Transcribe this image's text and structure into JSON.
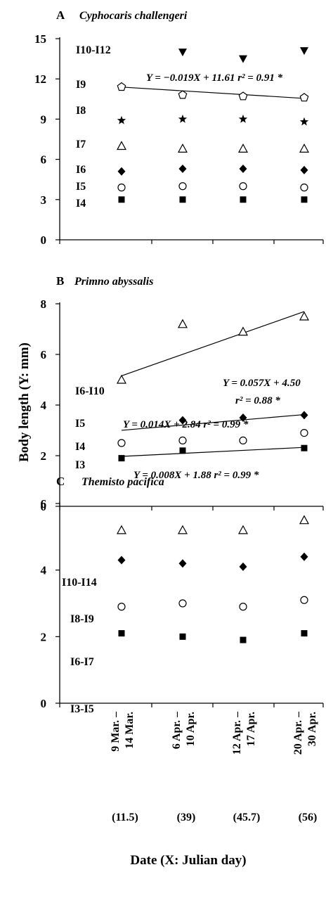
{
  "figure": {
    "ylabel": "Body length (Y: mm)",
    "xlabel": "Date  (X: Julian day)",
    "x_categories": [
      {
        "date": "9 Mar. – 14 Mar.",
        "julian": "(11.5)"
      },
      {
        "date": "6 Apr. – 10 Apr.",
        "julian": "(39)"
      },
      {
        "date": "12 Apr. – 17 Apr.",
        "julian": "(45.7)"
      },
      {
        "date": "20 Apr. – 30 Apr.",
        "julian": "(56)"
      }
    ]
  },
  "chart_data": [
    {
      "type": "scatter",
      "panel": "A",
      "title": "Cyphocaris challengeri",
      "x": [
        11.5,
        39,
        45.7,
        56
      ],
      "ylim": [
        0,
        15
      ],
      "yticks": [
        0,
        3,
        6,
        9,
        12,
        15
      ],
      "series": [
        {
          "name": "I10-I12",
          "marker": "triangle-down-filled",
          "values": [
            null,
            14.0,
            13.5,
            14.1
          ]
        },
        {
          "name": "I9",
          "marker": "pentagon-open",
          "values": [
            11.4,
            10.8,
            10.7,
            10.6
          ]
        },
        {
          "name": "I8",
          "marker": "star-filled",
          "values": [
            8.9,
            9.0,
            9.0,
            8.8
          ]
        },
        {
          "name": "I7",
          "marker": "triangle-up-open",
          "values": [
            7.0,
            6.8,
            6.8,
            6.8
          ]
        },
        {
          "name": "I6",
          "marker": "diamond-filled",
          "values": [
            5.1,
            5.3,
            5.3,
            5.2
          ]
        },
        {
          "name": "I5",
          "marker": "circle-open",
          "values": [
            3.9,
            4.0,
            4.0,
            3.9
          ]
        },
        {
          "name": "I4",
          "marker": "square-filled",
          "values": [
            3.0,
            3.0,
            3.0,
            3.0
          ]
        }
      ],
      "regressions": [
        {
          "series": "I9",
          "slope": -0.019,
          "intercept": 11.61,
          "label": "Y = −0.019X + 11.61 r² = 0.91 *"
        }
      ]
    },
    {
      "type": "scatter",
      "panel": "B",
      "title": "Primno abyssalis",
      "x": [
        11.5,
        39,
        45.7,
        56
      ],
      "ylim": [
        0,
        8
      ],
      "yticks": [
        0,
        2,
        4,
        6,
        8
      ],
      "series": [
        {
          "name": "I6-I10",
          "marker": "triangle-up-open",
          "values": [
            5.0,
            7.2,
            6.9,
            7.5
          ]
        },
        {
          "name": "I5",
          "marker": "diamond-filled",
          "values": [
            null,
            3.4,
            3.5,
            3.6
          ]
        },
        {
          "name": "I4",
          "marker": "circle-open",
          "values": [
            2.5,
            2.6,
            2.6,
            2.9
          ]
        },
        {
          "name": "I3",
          "marker": "square-filled",
          "values": [
            1.9,
            2.2,
            null,
            2.3
          ]
        }
      ],
      "regressions": [
        {
          "series": "I6-I10",
          "slope": 0.057,
          "intercept": 4.5,
          "label_line1": "Y = 0.057X + 4.50",
          "label_line2": "r² = 0.88 *"
        },
        {
          "series": "I5",
          "slope": 0.014,
          "intercept": 2.84,
          "label": "Y = 0.014X + 2.84 r² = 0.99 *"
        },
        {
          "series": "I3",
          "slope": 0.008,
          "intercept": 1.88,
          "label": "Y = 0.008X + 1.88 r² = 0.99 *"
        }
      ]
    },
    {
      "type": "scatter",
      "panel": "C",
      "title": "Themisto pacifica",
      "x": [
        11.5,
        39,
        45.7,
        56
      ],
      "ylim": [
        0,
        6
      ],
      "yticks": [
        0,
        2,
        4,
        6
      ],
      "series": [
        {
          "name": "I10-I14",
          "marker": "triangle-up-open",
          "values": [
            5.2,
            5.2,
            5.2,
            5.5
          ]
        },
        {
          "name": "I8-I9",
          "marker": "diamond-filled",
          "values": [
            4.3,
            4.2,
            4.1,
            4.4
          ]
        },
        {
          "name": "I6-I7",
          "marker": "circle-open",
          "values": [
            2.9,
            3.0,
            2.9,
            3.1
          ]
        },
        {
          "name": "I3-I5",
          "marker": "square-filled",
          "values": [
            2.1,
            2.0,
            1.9,
            2.1
          ]
        }
      ],
      "regressions": []
    }
  ]
}
